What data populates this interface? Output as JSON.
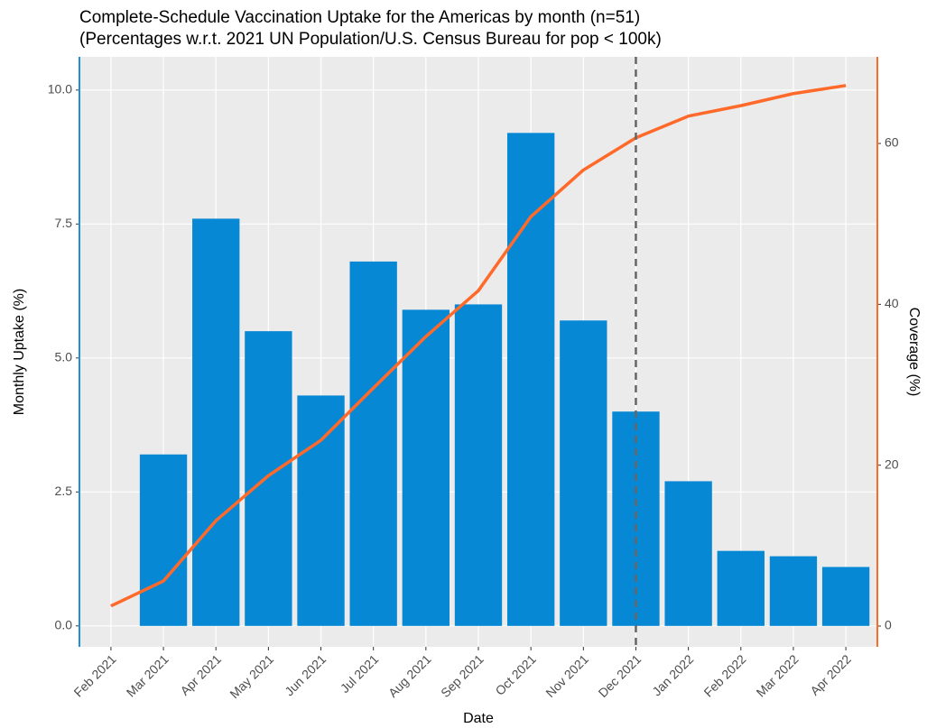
{
  "chart_data": {
    "type": "bar_line",
    "title": "Complete-Schedule Vaccination Uptake for the Americas by month (n=51)",
    "subtitle": "(Percentages w.r.t. 2021 UN Population/U.S. Census Bureau for pop < 100k)",
    "x_label": "Date",
    "y_label": "Monthly Uptake (%)",
    "y2_label": "Coverage (%)",
    "categories": [
      "Feb 2021",
      "Mar 2021",
      "Apr 2021",
      "May 2021",
      "Jun 2021",
      "Jul 2021",
      "Aug 2021",
      "Sep 2021",
      "Oct 2021",
      "Nov 2021",
      "Dec 2021",
      "Jan 2022",
      "Feb 2022",
      "Mar 2022",
      "Apr 2022"
    ],
    "series": [
      {
        "type": "bar",
        "color": "#0788d4",
        "values": [
          null,
          3.2,
          7.6,
          5.5,
          4.3,
          6.8,
          5.9,
          6.0,
          9.2,
          5.7,
          4.0,
          2.7,
          1.4,
          1.3,
          1.1
        ]
      },
      {
        "type": "line",
        "axis": "y2",
        "color": "#ff6a2b",
        "values": [
          2.5,
          5.6,
          13.1,
          18.7,
          23.1,
          29.6,
          36.0,
          41.7,
          50.9,
          56.7,
          60.7,
          63.4,
          64.7,
          66.2,
          67.2
        ]
      }
    ],
    "ylim": [
      -0.39,
      10.62
    ],
    "yticks": [
      {
        "value": 0,
        "label": "0.0"
      },
      2.5,
      {
        "value": 5,
        "label": "5.0"
      },
      7.5,
      {
        "value": 10,
        "label": "10.0"
      }
    ],
    "y2lim": [
      -2.58,
      70.77
    ],
    "y2ticks": [
      0,
      20,
      40,
      60
    ],
    "grid": true,
    "vline_category": "Dec 2021",
    "y_axis_color": "#1f8fd8",
    "y2_axis_color": "#ff6a2b"
  }
}
